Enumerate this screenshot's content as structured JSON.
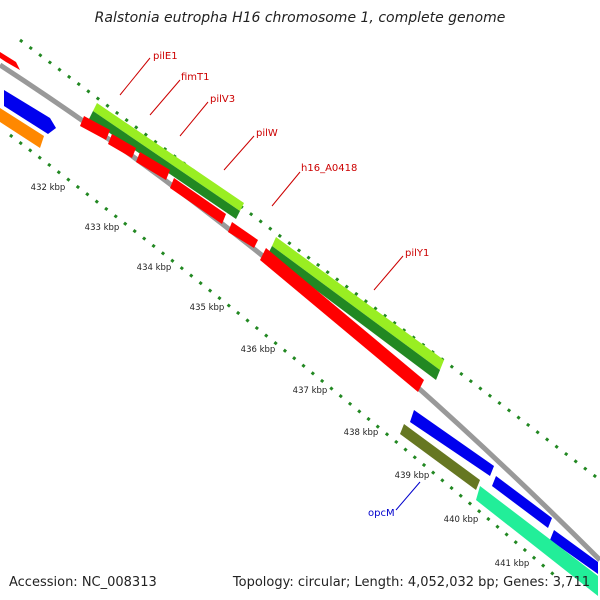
{
  "title": "Ralstonia eutropha H16 chromosome 1, complete genome",
  "footer": {
    "accession": "Accession: NC_008313",
    "topology": "Topology: circular; Length: 4,052,032 bp; Genes: 3,711"
  },
  "ruler": {
    "unit": "kbp",
    "ticks": [
      "432 kbp",
      "433 kbp",
      "434 kbp",
      "435 kbp",
      "436 kbp",
      "437 kbp",
      "438 kbp",
      "439 kbp",
      "440 kbp",
      "441 kbp"
    ]
  },
  "colors": {
    "red": "#ff0000",
    "blue": "#0000ee",
    "orange": "#ff8800",
    "lime": "#99ee22",
    "darkgreen": "#228822",
    "olive": "#667722",
    "mint": "#22ee99",
    "backbone": "#888888",
    "label_red": "#cc0000",
    "label_blue": "#0000cc"
  },
  "gene_labels": [
    {
      "text": "pilE1",
      "color": "red"
    },
    {
      "text": "fimT1",
      "color": "red"
    },
    {
      "text": "pilV3",
      "color": "red"
    },
    {
      "text": "pilW",
      "color": "red"
    },
    {
      "text": "h16_A0418",
      "color": "red"
    },
    {
      "text": "pilY1",
      "color": "red"
    },
    {
      "text": "opcM",
      "color": "blue"
    }
  ]
}
